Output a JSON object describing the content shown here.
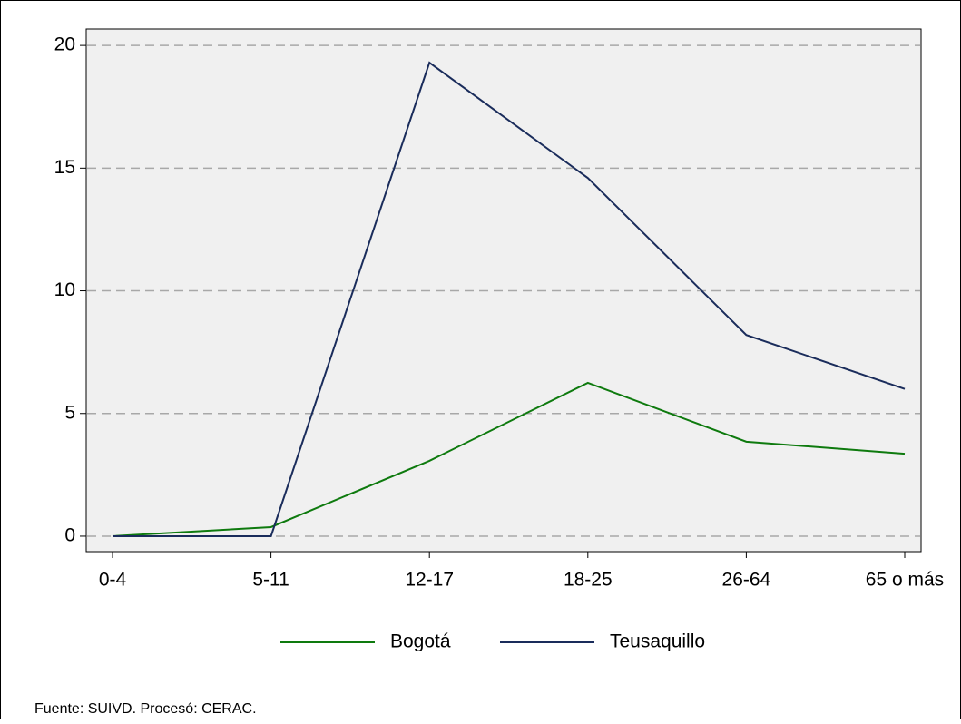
{
  "chart_data": {
    "type": "line",
    "categories": [
      "0-4",
      "5-11",
      "12-17",
      "18-25",
      "26-64",
      "65 o más"
    ],
    "series": [
      {
        "name": "Bogotá",
        "color": "#0e7a0e",
        "values": [
          0,
          0.37,
          3.07,
          6.25,
          3.85,
          3.36
        ]
      },
      {
        "name": "Teusaquillo",
        "color": "#1a2c5b",
        "values": [
          0,
          0,
          19.3,
          14.6,
          8.2,
          6.0
        ]
      }
    ],
    "ylim": [
      -0.63,
      20.67
    ],
    "yticks": [
      0,
      5,
      10,
      15,
      20
    ],
    "grid": true,
    "legend": "bottom",
    "note": "Fuente: SUIVD. Procesó: CERAC."
  }
}
